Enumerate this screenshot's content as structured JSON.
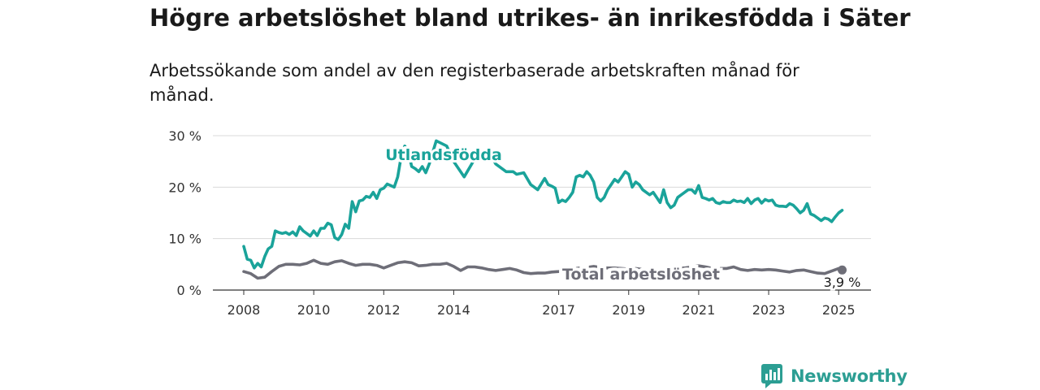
{
  "title": "Högre arbetslöshet bland utrikes- än inrikesfödda i Säter",
  "subtitle": "Arbetssökande som andel av den registerbaserade arbetskraften månad för månad.",
  "brand": {
    "name": "Newsworthy",
    "icon": "newsworthy-logo-icon",
    "color": "#2c9e93"
  },
  "chart_data": {
    "type": "line",
    "ylim": [
      0,
      30
    ],
    "xlim": [
      2008.0,
      2025.3
    ],
    "y_ticks": [
      0,
      10,
      20,
      30
    ],
    "y_tick_labels": [
      "0 %",
      "10 %",
      "20 %",
      "30 %"
    ],
    "x_ticks": [
      2008,
      2010,
      2012,
      2014,
      2017,
      2019,
      2021,
      2023,
      2025
    ],
    "x_tick_labels": [
      "2008",
      "2010",
      "2012",
      "2014",
      "2017",
      "2019",
      "2021",
      "2023",
      "2025"
    ],
    "grid": "horizontal",
    "series": [
      {
        "name": "Utlandsfödda",
        "color": "#1aa39a",
        "x": [
          2008.0,
          2008.1,
          2008.2,
          2008.3,
          2008.4,
          2008.5,
          2008.6,
          2008.7,
          2008.8,
          2008.9,
          2009.0,
          2009.1,
          2009.2,
          2009.3,
          2009.4,
          2009.5,
          2009.6,
          2009.7,
          2009.8,
          2009.9,
          2010.0,
          2010.1,
          2010.2,
          2010.3,
          2010.4,
          2010.5,
          2010.6,
          2010.7,
          2010.8,
          2010.9,
          2011.0,
          2011.1,
          2011.2,
          2011.3,
          2011.4,
          2011.5,
          2011.6,
          2011.7,
          2011.8,
          2011.9,
          2012.0,
          2012.1,
          2012.2,
          2012.3,
          2012.4,
          2012.5,
          2012.6,
          2012.7,
          2012.8,
          2012.9,
          2013.0,
          2013.1,
          2013.2,
          2013.3,
          2013.5,
          2013.8,
          2014.0,
          2014.3,
          2014.6,
          2014.8,
          2015.0,
          2015.2,
          2015.5,
          2015.7,
          2015.8,
          2016.0,
          2016.2,
          2016.4,
          2016.6,
          2016.7,
          2016.8,
          2016.9,
          2017.0,
          2017.1,
          2017.2,
          2017.3,
          2017.4,
          2017.5,
          2017.6,
          2017.7,
          2017.8,
          2017.9,
          2018.0,
          2018.1,
          2018.2,
          2018.3,
          2018.4,
          2018.5,
          2018.6,
          2018.7,
          2018.8,
          2018.9,
          2019.0,
          2019.1,
          2019.2,
          2019.3,
          2019.4,
          2019.5,
          2019.6,
          2019.7,
          2019.8,
          2019.9,
          2020.0,
          2020.1,
          2020.2,
          2020.3,
          2020.4,
          2020.5,
          2020.6,
          2020.7,
          2020.8,
          2020.9,
          2021.0,
          2021.1,
          2021.2,
          2021.3,
          2021.4,
          2021.5,
          2021.6,
          2021.7,
          2021.8,
          2021.9,
          2022.0,
          2022.1,
          2022.2,
          2022.3,
          2022.4,
          2022.5,
          2022.6,
          2022.7,
          2022.8,
          2022.9,
          2023.0,
          2023.1,
          2023.2,
          2023.3,
          2023.4,
          2023.5,
          2023.6,
          2023.7,
          2023.8,
          2023.9,
          2024.0,
          2024.1,
          2024.2,
          2024.3,
          2024.4,
          2024.5,
          2024.6,
          2024.7,
          2024.8,
          2024.9,
          2025.0,
          2025.1
        ],
        "values": [
          8.5,
          6.0,
          5.8,
          4.3,
          5.2,
          4.5,
          6.5,
          8.0,
          8.5,
          11.5,
          11.2,
          11.0,
          11.2,
          10.8,
          11.3,
          10.6,
          12.3,
          11.5,
          11.0,
          10.5,
          11.5,
          10.6,
          12.0,
          12.0,
          13.0,
          12.7,
          10.2,
          9.8,
          10.8,
          12.8,
          12.0,
          17.2,
          15.2,
          17.3,
          17.5,
          18.2,
          18.0,
          19.0,
          17.8,
          19.5,
          19.8,
          20.6,
          20.3,
          20.0,
          22.0,
          26.0,
          28.0,
          27.0,
          24.0,
          23.6,
          23.0,
          24.0,
          22.8,
          24.5,
          29.0,
          28.0,
          25.0,
          22.0,
          25.5,
          25.5,
          27.0,
          24.5,
          23.0,
          23.0,
          22.5,
          22.8,
          20.5,
          19.5,
          21.7,
          20.5,
          20.2,
          19.8,
          17.0,
          17.5,
          17.2,
          18.0,
          19.0,
          22.0,
          22.3,
          22.0,
          23.0,
          22.3,
          21.0,
          18.0,
          17.3,
          18.0,
          19.5,
          20.5,
          21.5,
          21.0,
          22.0,
          23.0,
          22.5,
          20.0,
          21.0,
          20.5,
          19.5,
          19.0,
          18.5,
          19.0,
          18.0,
          17.0,
          19.5,
          17.0,
          16.0,
          16.5,
          18.0,
          18.5,
          19.0,
          19.5,
          19.5,
          18.8,
          20.3,
          18.0,
          17.8,
          17.5,
          17.8,
          17.0,
          16.8,
          17.2,
          17.0,
          17.0,
          17.5,
          17.2,
          17.3,
          17.0,
          17.8,
          16.8,
          17.5,
          17.8,
          16.9,
          17.6,
          17.3,
          17.5,
          16.5,
          16.3,
          16.3,
          16.2,
          16.8,
          16.5,
          15.8,
          15.0,
          15.5,
          16.8,
          14.8,
          14.5,
          14.0,
          13.5,
          14.0,
          13.8,
          13.3,
          14.2,
          15.0,
          15.5
        ],
        "label_position": "above"
      },
      {
        "name": "Total arbetslöshet",
        "color": "#6e6e78",
        "x": [
          2008.0,
          2008.2,
          2008.4,
          2008.6,
          2008.8,
          2009.0,
          2009.2,
          2009.4,
          2009.6,
          2009.8,
          2010.0,
          2010.2,
          2010.4,
          2010.6,
          2010.8,
          2011.0,
          2011.2,
          2011.4,
          2011.6,
          2011.8,
          2012.0,
          2012.2,
          2012.4,
          2012.6,
          2012.8,
          2013.0,
          2013.2,
          2013.4,
          2013.6,
          2013.8,
          2014.0,
          2014.2,
          2014.4,
          2014.6,
          2014.8,
          2015.0,
          2015.2,
          2015.4,
          2015.6,
          2015.8,
          2016.0,
          2016.2,
          2016.4,
          2016.6,
          2016.8,
          2017.0,
          2017.2,
          2017.4,
          2017.6,
          2017.8,
          2018.0,
          2018.2,
          2018.4,
          2018.6,
          2018.8,
          2019.0,
          2019.2,
          2019.4,
          2019.6,
          2019.8,
          2020.0,
          2020.2,
          2020.4,
          2020.6,
          2020.8,
          2021.0,
          2021.2,
          2021.4,
          2021.6,
          2021.8,
          2022.0,
          2022.2,
          2022.4,
          2022.6,
          2022.8,
          2023.0,
          2023.2,
          2023.4,
          2023.6,
          2023.8,
          2024.0,
          2024.2,
          2024.4,
          2024.6,
          2024.8,
          2025.0,
          2025.1
        ],
        "values": [
          3.6,
          3.2,
          2.3,
          2.5,
          3.6,
          4.6,
          5.0,
          5.0,
          4.9,
          5.2,
          5.8,
          5.2,
          5.0,
          5.5,
          5.7,
          5.2,
          4.8,
          5.0,
          5.0,
          4.8,
          4.3,
          4.8,
          5.3,
          5.5,
          5.3,
          4.7,
          4.8,
          5.0,
          5.0,
          5.2,
          4.6,
          3.8,
          4.5,
          4.5,
          4.3,
          4.0,
          3.8,
          4.0,
          4.2,
          3.9,
          3.4,
          3.2,
          3.3,
          3.3,
          3.5,
          3.6,
          3.8,
          4.1,
          4.3,
          4.4,
          4.6,
          4.4,
          4.3,
          4.3,
          4.2,
          4.1,
          4.2,
          4.0,
          4.0,
          4.0,
          3.9,
          4.2,
          4.3,
          4.3,
          4.5,
          4.7,
          4.5,
          4.2,
          4.2,
          4.2,
          4.5,
          4.0,
          3.8,
          4.0,
          3.9,
          4.0,
          3.9,
          3.7,
          3.5,
          3.8,
          3.9,
          3.6,
          3.3,
          3.2,
          3.7,
          4.2,
          3.9
        ],
        "end_label": "3,9 %"
      }
    ]
  }
}
